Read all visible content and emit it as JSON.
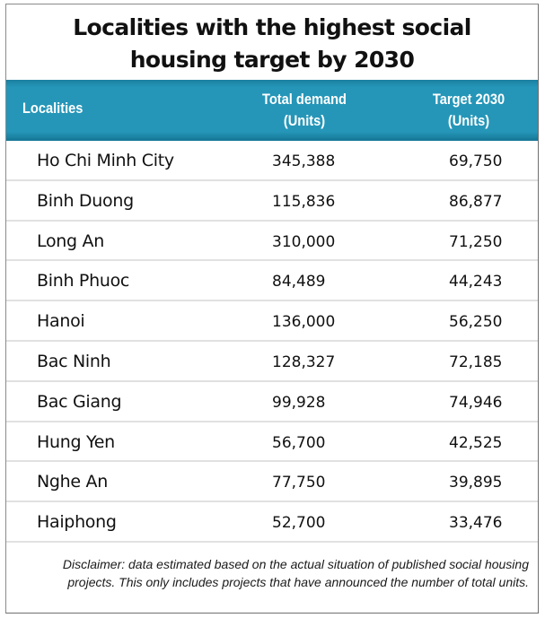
{
  "title_line1": "Localities with the highest social",
  "title_line2": "housing target by 2030",
  "header": {
    "localities": "Localities",
    "demand_line1": "Total demand",
    "demand_line2": "(Units)",
    "target_line1": "Target 2030",
    "target_line2": "(Units)"
  },
  "colors": {
    "header_bg": "#2596b8",
    "divider": "#e1e1e1",
    "text": "#111111"
  },
  "rows": [
    {
      "name": "Ho Chi Minh City",
      "demand": "345,388",
      "target": "69,750"
    },
    {
      "name": "Binh Duong",
      "demand": "115,836",
      "target": "86,877"
    },
    {
      "name": "Long An",
      "demand": "310,000",
      "target": "71,250"
    },
    {
      "name": "Binh Phuoc",
      "demand": "84,489",
      "target": "44,243"
    },
    {
      "name": "Hanoi",
      "demand": "136,000",
      "target": "56,250"
    },
    {
      "name": "Bac Ninh",
      "demand": "128,327",
      "target": "72,185"
    },
    {
      "name": "Bac Giang",
      "demand": "99,928",
      "target": "74,946"
    },
    {
      "name": "Hung Yen",
      "demand": "56,700",
      "target": "42,525"
    },
    {
      "name": "Nghe An",
      "demand": "77,750",
      "target": "39,895"
    },
    {
      "name": "Haiphong",
      "demand": "52,700",
      "target": "33,476"
    }
  ],
  "disclaimer": "Disclaimer: data estimated based on the actual situation of published social housing projects. This only includes projects that have announced the number of total units.",
  "chart_data": {
    "type": "table",
    "title": "Localities with the highest social housing target by 2030",
    "columns": [
      "Localities",
      "Total demand (Units)",
      "Target 2030 (Units)"
    ],
    "categories": [
      "Ho Chi Minh City",
      "Binh Duong",
      "Long An",
      "Binh Phuoc",
      "Hanoi",
      "Bac Ninh",
      "Bac Giang",
      "Hung Yen",
      "Nghe An",
      "Haiphong"
    ],
    "series": [
      {
        "name": "Total demand (Units)",
        "values": [
          345388,
          115836,
          310000,
          84489,
          136000,
          128327,
          99928,
          56700,
          77750,
          52700
        ]
      },
      {
        "name": "Target 2030 (Units)",
        "values": [
          69750,
          86877,
          71250,
          44243,
          56250,
          72185,
          74946,
          42525,
          39895,
          33476
        ]
      }
    ],
    "note": "Disclaimer: data estimated based on the actual situation of published social housing projects. This only includes projects that have announced the number of total units."
  }
}
